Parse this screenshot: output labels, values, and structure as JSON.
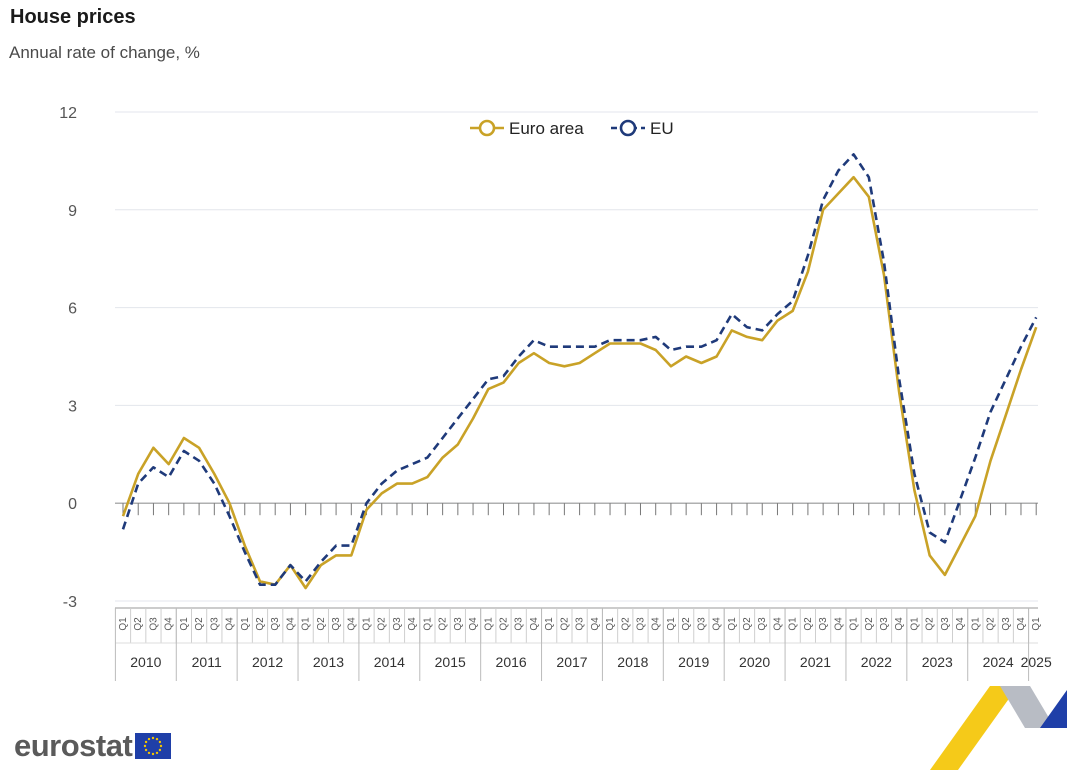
{
  "title": "House prices",
  "subtitle": "Annual rate of change, %",
  "logo_text": "eurostat",
  "chart_data": {
    "type": "line",
    "y_axis": {
      "min": -3,
      "max": 12,
      "ticks": [
        12,
        9,
        6,
        3,
        0,
        -3
      ]
    },
    "grid": true,
    "legend_position": "top-center",
    "quarter_labels": [
      "Q1",
      "Q2",
      "Q3",
      "Q4"
    ],
    "years": [
      "2010",
      "2011",
      "2012",
      "2013",
      "2014",
      "2015",
      "2016",
      "2017",
      "2018",
      "2019",
      "2020",
      "2021",
      "2022",
      "2023",
      "2024",
      "2025"
    ],
    "x": [
      "2010Q1",
      "2010Q2",
      "2010Q3",
      "2010Q4",
      "2011Q1",
      "2011Q2",
      "2011Q3",
      "2011Q4",
      "2012Q1",
      "2012Q2",
      "2012Q3",
      "2012Q4",
      "2013Q1",
      "2013Q2",
      "2013Q3",
      "2013Q4",
      "2014Q1",
      "2014Q2",
      "2014Q3",
      "2014Q4",
      "2015Q1",
      "2015Q2",
      "2015Q3",
      "2015Q4",
      "2016Q1",
      "2016Q2",
      "2016Q3",
      "2016Q4",
      "2017Q1",
      "2017Q2",
      "2017Q3",
      "2017Q4",
      "2018Q1",
      "2018Q2",
      "2018Q3",
      "2018Q4",
      "2019Q1",
      "2019Q2",
      "2019Q3",
      "2019Q4",
      "2020Q1",
      "2020Q2",
      "2020Q3",
      "2020Q4",
      "2021Q1",
      "2021Q2",
      "2021Q3",
      "2021Q4",
      "2022Q1",
      "2022Q2",
      "2022Q3",
      "2022Q4",
      "2023Q1",
      "2023Q2",
      "2023Q3",
      "2023Q4",
      "2024Q1",
      "2024Q2",
      "2024Q3",
      "2024Q4",
      "2025Q1"
    ],
    "series": [
      {
        "name": "Euro area",
        "color": "#c9a227",
        "dash": "solid",
        "values": [
          -0.4,
          0.9,
          1.7,
          1.2,
          2.0,
          1.7,
          0.9,
          0.0,
          -1.3,
          -2.4,
          -2.5,
          -1.9,
          -2.6,
          -1.9,
          -1.6,
          -1.6,
          -0.2,
          0.3,
          0.6,
          0.6,
          0.8,
          1.4,
          1.8,
          2.6,
          3.5,
          3.7,
          4.3,
          4.6,
          4.3,
          4.2,
          4.3,
          4.6,
          4.9,
          4.9,
          4.9,
          4.7,
          4.2,
          4.5,
          4.3,
          4.5,
          5.3,
          5.1,
          5.0,
          5.6,
          5.9,
          7.1,
          9.0,
          9.5,
          10.0,
          9.4,
          7.0,
          3.4,
          0.4,
          -1.6,
          -2.2,
          -1.3,
          -0.4,
          1.3,
          2.7,
          4.1,
          5.4
        ]
      },
      {
        "name": "EU",
        "color": "#1f3a7a",
        "dash": "dashed",
        "values": [
          -0.8,
          0.6,
          1.1,
          0.8,
          1.6,
          1.3,
          0.6,
          -0.4,
          -1.5,
          -2.5,
          -2.5,
          -1.9,
          -2.4,
          -1.8,
          -1.3,
          -1.3,
          0.0,
          0.6,
          1.0,
          1.2,
          1.4,
          2.0,
          2.6,
          3.2,
          3.8,
          3.9,
          4.5,
          5.0,
          4.8,
          4.8,
          4.8,
          4.8,
          5.0,
          5.0,
          5.0,
          5.1,
          4.7,
          4.8,
          4.8,
          5.0,
          5.8,
          5.4,
          5.3,
          5.8,
          6.2,
          7.6,
          9.3,
          10.2,
          10.7,
          10.0,
          7.4,
          3.8,
          0.9,
          -0.9,
          -1.2,
          0.1,
          1.4,
          2.8,
          3.8,
          4.8,
          5.7
        ]
      }
    ]
  }
}
